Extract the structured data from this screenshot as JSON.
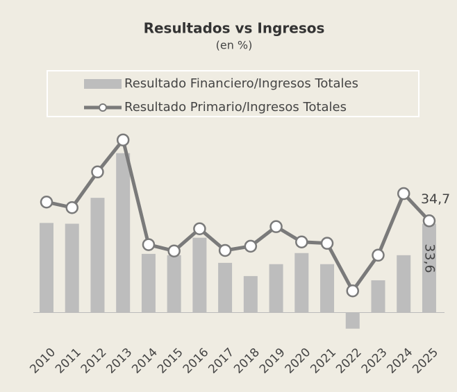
{
  "chart_data": {
    "type": "bar_line",
    "title": "Resultados vs Ingresos",
    "subtitle": "(en %)",
    "categories": [
      "2010",
      "2011",
      "2012",
      "2013",
      "2014",
      "2015",
      "2016",
      "2017",
      "2018",
      "2019",
      "2020",
      "2021",
      "2022",
      "2023",
      "2024",
      "2025"
    ],
    "series": [
      {
        "name": "Resultado Financiero/Ingresos Totales",
        "type": "bar",
        "color": "#bdbdbd",
        "values": [
          33.9,
          33.6,
          43.4,
          60.3,
          22.2,
          21.7,
          28.3,
          18.8,
          13.8,
          18.3,
          22.5,
          18.3,
          -6.1,
          12.2,
          21.7,
          33.6
        ],
        "value_labels": [
          null,
          null,
          null,
          null,
          null,
          null,
          null,
          null,
          null,
          null,
          null,
          null,
          null,
          null,
          null,
          "33,6"
        ]
      },
      {
        "name": "Resultado Primario/Ingresos Totales",
        "type": "line",
        "color": "#7a7a7a",
        "values": [
          41.8,
          39.7,
          53.2,
          65.3,
          25.7,
          23.3,
          31.7,
          23.5,
          25.1,
          32.5,
          26.7,
          26.2,
          8.2,
          21.7,
          45.0,
          34.7
        ],
        "value_labels": [
          null,
          null,
          null,
          null,
          null,
          null,
          null,
          null,
          null,
          null,
          null,
          null,
          null,
          null,
          null,
          "34,7"
        ]
      }
    ],
    "ylim": [
      -13,
      71
    ]
  }
}
